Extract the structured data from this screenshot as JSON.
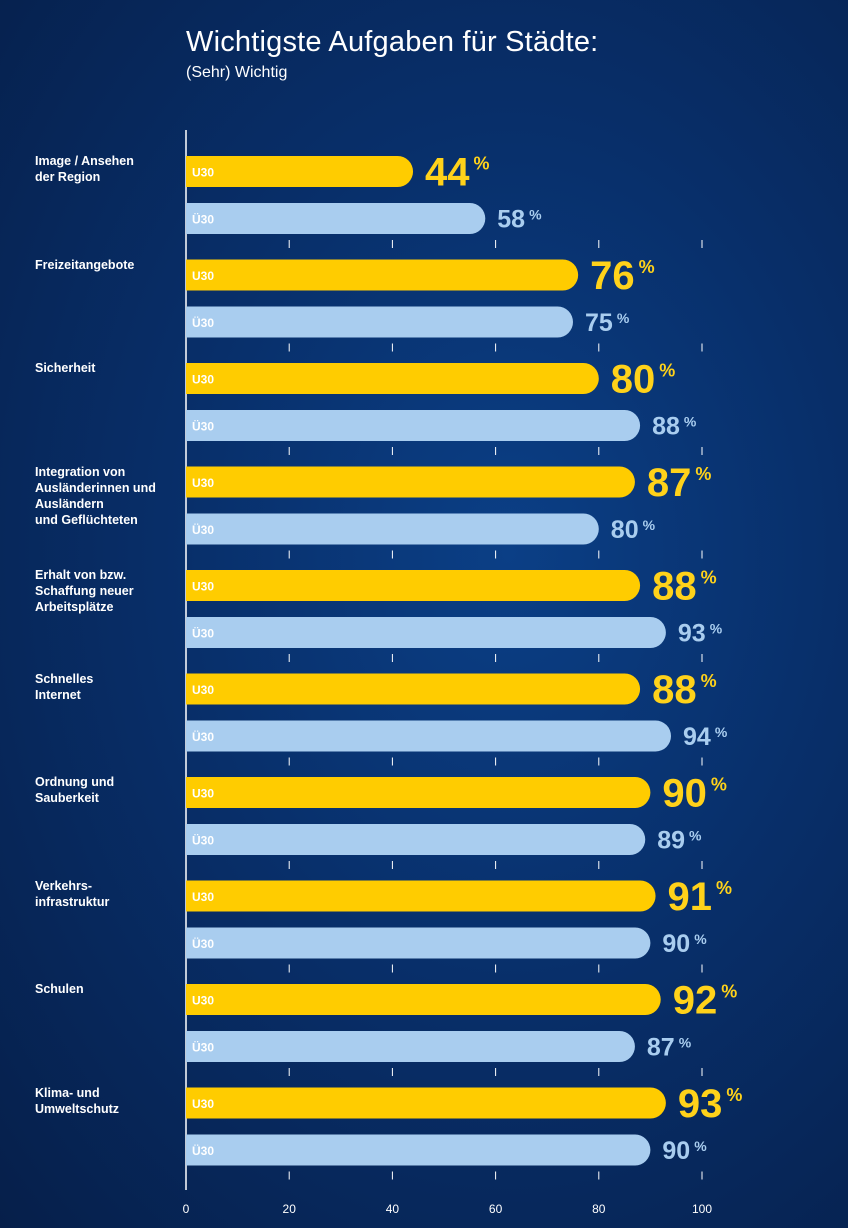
{
  "header": {
    "title": "Wichtigste Aufgaben für Städte:",
    "subtitle": "(Sehr) Wichtig"
  },
  "colors": {
    "u30": "#ffcc00",
    "ue30": "#a9cdef",
    "u30_value": "#ffd21a",
    "ue30_value": "#a9cdef",
    "axis": "#ffffff"
  },
  "chart_data": {
    "type": "bar",
    "orientation": "horizontal",
    "title": "Wichtigste Aufgaben für Städte:",
    "subtitle": "(Sehr) Wichtig",
    "xlim": [
      0,
      100
    ],
    "x_ticks": [
      0,
      20,
      40,
      60,
      80,
      100
    ],
    "categories": [
      "Image / Ansehen\nder Region",
      "Freizeitangebote",
      "Sicherheit",
      "Integration von\nAusländerinnen und\nAusländern\nund Geflüchteten",
      "Erhalt von bzw.\nSchaffung neuer\nArbeitsplätze",
      "Schnelles\nInternet",
      "Ordnung und\nSauberkeit",
      "Verkehrs-\ninfrastruktur",
      "Schulen",
      "Klima- und\nUmweltschutz"
    ],
    "series": [
      {
        "name": "U30",
        "values": [
          44,
          76,
          80,
          87,
          88,
          88,
          90,
          91,
          92,
          93
        ]
      },
      {
        "name": "Ü30",
        "values": [
          58,
          75,
          88,
          80,
          93,
          94,
          89,
          90,
          87,
          90
        ]
      }
    ],
    "value_suffix": "%"
  }
}
